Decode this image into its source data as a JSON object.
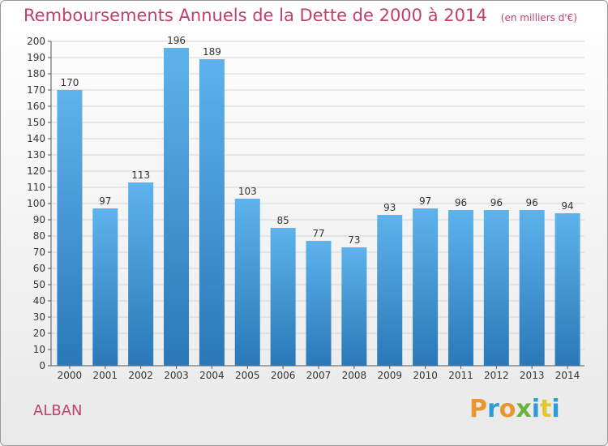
{
  "header": {
    "title": "Remboursements Annuels de la Dette de 2000 à 2014",
    "unit": "(en milliers d'€)"
  },
  "footer": {
    "commune": "ALBAN",
    "logo_text": "Proxiti"
  },
  "colors": {
    "bar_top": "#5eb3ec",
    "bar_bottom": "#2a78b8",
    "title": "#c0406a",
    "logo_letters": [
      "#e9962b",
      "#2f9bd6",
      "#e9962b",
      "#6ab43e",
      "#2f9bd6",
      "#e2c72a",
      "#2f9bd6"
    ]
  },
  "chart_data": {
    "type": "bar",
    "title": "Remboursements Annuels de la Dette de 2000 à 2014",
    "xlabel": "",
    "ylabel": "",
    "categories": [
      "2000",
      "2001",
      "2002",
      "2003",
      "2004",
      "2005",
      "2006",
      "2007",
      "2008",
      "2009",
      "2010",
      "2011",
      "2012",
      "2013",
      "2014"
    ],
    "values": [
      170,
      97,
      113,
      196,
      189,
      103,
      85,
      77,
      73,
      93,
      97,
      96,
      96,
      96,
      94
    ],
    "ylim": [
      0,
      200
    ],
    "ytick_step": 10,
    "grid": true,
    "legend": "none"
  }
}
